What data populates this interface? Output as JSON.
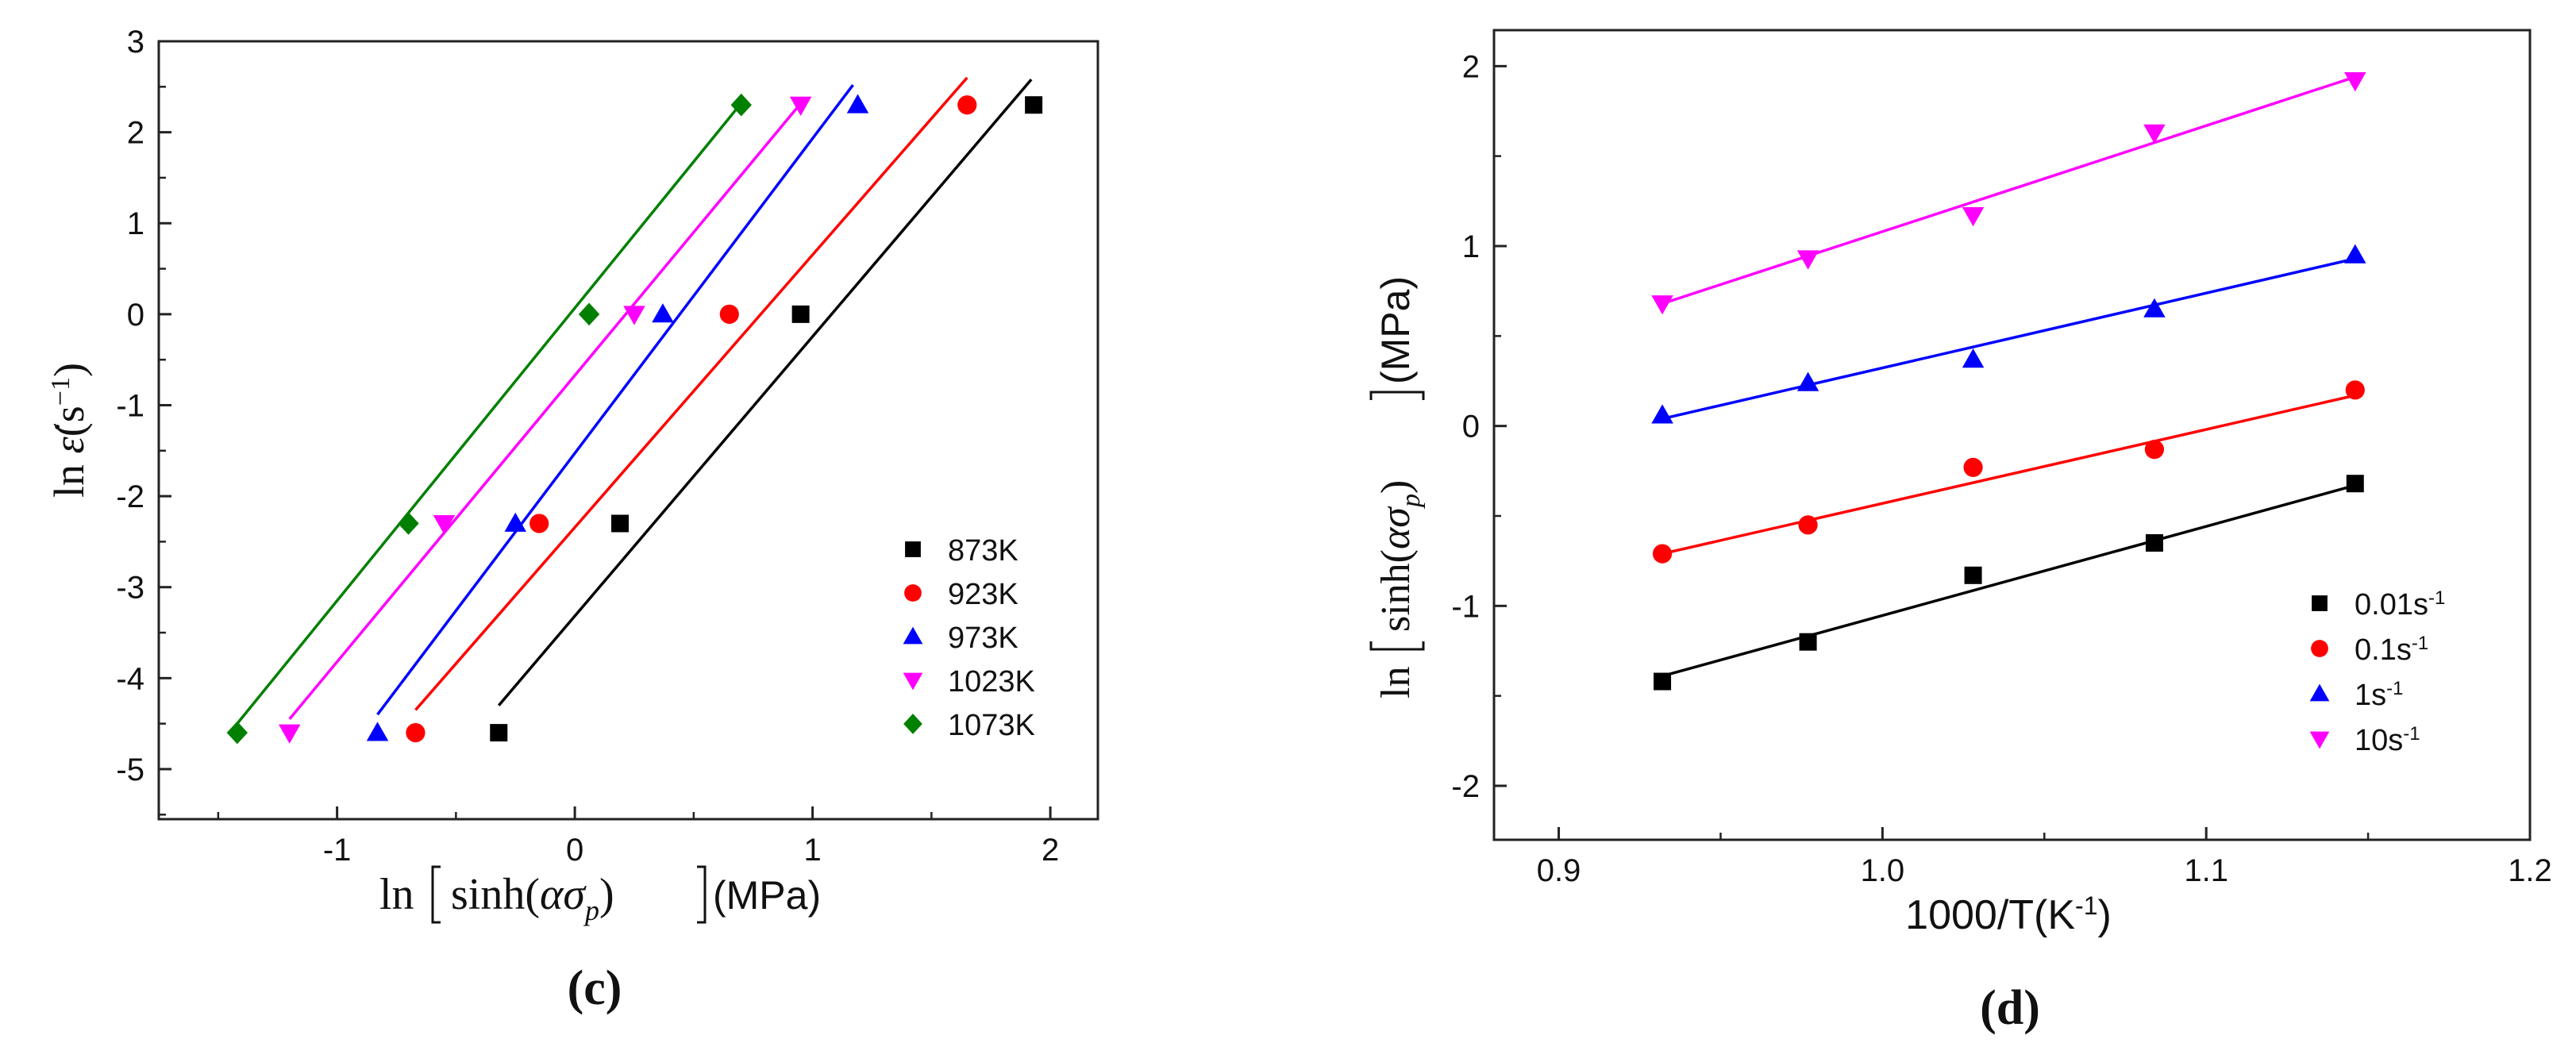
{
  "panels": {
    "c": {
      "caption": "(c)"
    },
    "d": {
      "caption": "(d)"
    }
  },
  "chart_data": [
    {
      "type": "scatter",
      "panel": "(c)",
      "xlabel": "ln[sinh(ασp)](MPa)",
      "ylabel": "ln ε̇(s⁻¹)",
      "xlim": [
        -1.75,
        2.2
      ],
      "ylim": [
        -5.55,
        3.0
      ],
      "xticks": [
        -1,
        0,
        1,
        2
      ],
      "yticks": [
        3,
        2,
        1,
        0,
        -1,
        -2,
        -3,
        -4,
        -5
      ],
      "legend_position": "bottom-right",
      "fit_lines": true,
      "series": [
        {
          "name": "873K",
          "color": "#000000",
          "marker": "square",
          "x": [
            -0.32,
            0.19,
            0.95,
            1.93
          ],
          "y": [
            -4.6,
            -2.3,
            0,
            2.3
          ],
          "fit": [
            [
              -0.32,
              -4.3
            ],
            [
              1.92,
              2.58
            ]
          ]
        },
        {
          "name": "923K",
          "color": "#ff0000",
          "marker": "circle",
          "x": [
            -0.67,
            -0.15,
            0.65,
            1.65
          ],
          "y": [
            -4.6,
            -2.3,
            0,
            2.3
          ],
          "fit": [
            [
              -0.67,
              -4.35
            ],
            [
              1.65,
              2.6
            ]
          ]
        },
        {
          "name": "973K",
          "color": "#0000ff",
          "marker": "triangle-up",
          "x": [
            -0.83,
            -0.25,
            0.37,
            1.19
          ],
          "y": [
            -4.6,
            -2.3,
            0,
            2.3
          ],
          "fit": [
            [
              -0.83,
              -4.4
            ],
            [
              1.17,
              2.52
            ]
          ]
        },
        {
          "name": "1023K",
          "color": "#ff00ff",
          "marker": "triangle-down",
          "x": [
            -1.2,
            -0.55,
            0.25,
            0.95
          ],
          "y": [
            -4.6,
            -2.3,
            0,
            2.3
          ],
          "fit": [
            [
              -1.2,
              -4.45
            ],
            [
              0.97,
              2.38
            ]
          ]
        },
        {
          "name": "1073K",
          "color": "#008000",
          "marker": "diamond",
          "x": [
            -1.42,
            -0.7,
            0.06,
            0.7
          ],
          "y": [
            -4.6,
            -2.3,
            0,
            2.3
          ],
          "fit": [
            [
              -1.42,
              -4.5
            ],
            [
              0.7,
              2.32
            ]
          ]
        }
      ]
    },
    {
      "type": "scatter",
      "panel": "(d)",
      "xlabel": "1000/T(K⁻¹)",
      "ylabel": "ln[sinh(ασp)](MPa)",
      "xlim": [
        0.88,
        1.2
      ],
      "ylim": [
        -2.3,
        2.2
      ],
      "xticks": [
        0.9,
        1.0,
        1.1,
        1.2
      ],
      "yticks": [
        2,
        1,
        0,
        -1,
        -2
      ],
      "legend_position": "bottom-right",
      "fit_lines": true,
      "series": [
        {
          "name": "0.01s⁻¹",
          "color": "#000000",
          "marker": "square",
          "x": [
            0.932,
            0.977,
            1.028,
            1.084,
            1.146
          ],
          "y": [
            -1.42,
            -1.2,
            -0.83,
            -0.65,
            -0.32
          ],
          "fit": [
            [
              0.932,
              -1.39
            ],
            [
              1.146,
              -0.33
            ]
          ]
        },
        {
          "name": "0.1s⁻¹",
          "color": "#ff0000",
          "marker": "circle",
          "x": [
            0.932,
            0.977,
            1.028,
            1.084,
            1.146
          ],
          "y": [
            -0.71,
            -0.55,
            -0.23,
            -0.13,
            0.2
          ],
          "fit": [
            [
              0.932,
              -0.71
            ],
            [
              1.146,
              0.17
            ]
          ]
        },
        {
          "name": "1s⁻¹",
          "color": "#0000ff",
          "marker": "triangle-up",
          "x": [
            0.932,
            0.977,
            1.028,
            1.084,
            1.146
          ],
          "y": [
            0.06,
            0.24,
            0.37,
            0.65,
            0.95
          ],
          "fit": [
            [
              0.932,
              0.04
            ],
            [
              1.146,
              0.93
            ]
          ]
        },
        {
          "name": "10s⁻¹",
          "color": "#ff00ff",
          "marker": "triangle-down",
          "x": [
            0.932,
            0.977,
            1.028,
            1.084,
            1.146
          ],
          "y": [
            0.68,
            0.93,
            1.17,
            1.63,
            1.92
          ],
          "fit": [
            [
              0.932,
              0.68
            ],
            [
              1.146,
              1.94
            ]
          ]
        }
      ]
    }
  ]
}
